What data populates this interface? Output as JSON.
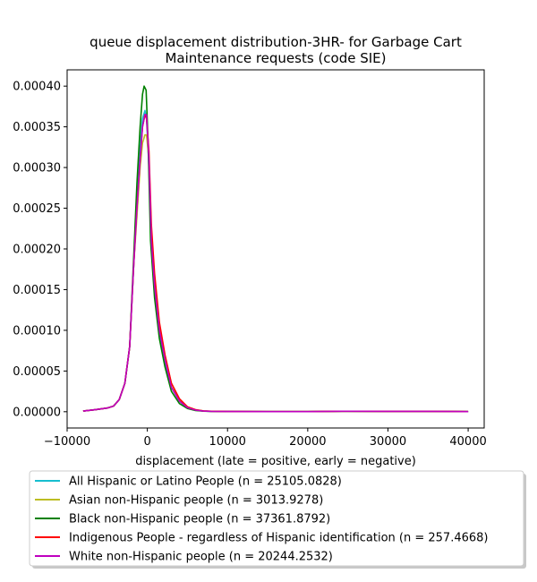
{
  "chart_data": {
    "type": "line",
    "title_lines": [
      "queue displacement distribution-3HR-  for Garbage Cart",
      "Maintenance  requests (code SIE)"
    ],
    "xlabel": "displacement (late = positive, early = negative)",
    "ylabel": "",
    "xlim": [
      -10000,
      42000
    ],
    "ylim": [
      -2e-05,
      0.00042
    ],
    "xticks": [
      -10000,
      0,
      10000,
      20000,
      30000,
      40000
    ],
    "xtick_labels": [
      "−10000",
      "0",
      "10000",
      "20000",
      "30000",
      "40000"
    ],
    "yticks": [
      0,
      5e-05,
      0.0001,
      0.00015,
      0.0002,
      0.00025,
      0.0003,
      0.00035,
      0.0004
    ],
    "ytick_labels": [
      "0.00000",
      "0.00005",
      "0.00010",
      "0.00015",
      "0.00020",
      "0.00025",
      "0.00030",
      "0.00035",
      "0.00040"
    ],
    "grid": false,
    "legend_placement": "below-chart",
    "series": [
      {
        "name": "All Hispanic or Latino People (n = 25105.0828)",
        "color": "#17becf",
        "points": [
          [
            -8000,
            8e-07
          ],
          [
            -6500,
            2.5e-06
          ],
          [
            -5000,
            4.5e-06
          ],
          [
            -4200,
            7e-06
          ],
          [
            -3500,
            1.5e-05
          ],
          [
            -2800,
            3.5e-05
          ],
          [
            -2200,
            8e-05
          ],
          [
            -1700,
            0.00018
          ],
          [
            -1300,
            0.00026
          ],
          [
            -900,
            0.00033
          ],
          [
            -600,
            0.00036
          ],
          [
            -300,
            0.00037
          ],
          [
            -100,
            0.00036
          ],
          [
            200,
            0.0003
          ],
          [
            500,
            0.0002
          ],
          [
            900,
            0.00015
          ],
          [
            1500,
            9.5e-05
          ],
          [
            2200,
            6e-05
          ],
          [
            3000,
            3e-05
          ],
          [
            4000,
            1.3e-05
          ],
          [
            5000,
            5e-06
          ],
          [
            6000,
            2e-06
          ],
          [
            7000,
            8e-07
          ],
          [
            8000,
            4e-07
          ],
          [
            10000,
            3e-07
          ],
          [
            15000,
            2e-07
          ],
          [
            20000,
            2e-07
          ],
          [
            25000,
            6e-07
          ],
          [
            30000,
            4e-07
          ],
          [
            35000,
            4e-07
          ],
          [
            40000,
            2e-07
          ]
        ]
      },
      {
        "name": "Asian non-Hispanic people (n = 3013.9278)",
        "color": "#bcbd22",
        "points": [
          [
            -8000,
            8e-07
          ],
          [
            -6500,
            2.5e-06
          ],
          [
            -5000,
            4.5e-06
          ],
          [
            -4200,
            7e-06
          ],
          [
            -3500,
            1.5e-05
          ],
          [
            -2800,
            3.5e-05
          ],
          [
            -2200,
            8e-05
          ],
          [
            -1700,
            0.00018
          ],
          [
            -1300,
            0.00024
          ],
          [
            -900,
            0.0003
          ],
          [
            -600,
            0.00033
          ],
          [
            -300,
            0.00034
          ],
          [
            -100,
            0.00034
          ],
          [
            200,
            0.00031
          ],
          [
            500,
            0.00022
          ],
          [
            900,
            0.000165
          ],
          [
            1500,
            0.000105
          ],
          [
            2200,
            6.8e-05
          ],
          [
            3000,
            3.5e-05
          ],
          [
            4000,
            1.5e-05
          ],
          [
            5000,
            6e-06
          ],
          [
            6000,
            2.5e-06
          ],
          [
            7000,
            1e-06
          ],
          [
            8000,
            5e-07
          ],
          [
            10000,
            3e-07
          ],
          [
            15000,
            2e-07
          ],
          [
            20000,
            2e-07
          ],
          [
            25000,
            6e-07
          ],
          [
            30000,
            4e-07
          ],
          [
            35000,
            4e-07
          ],
          [
            40000,
            2e-07
          ]
        ]
      },
      {
        "name": "Black non-Hispanic people (n = 37361.8792)",
        "color": "#008000",
        "points": [
          [
            -8000,
            8e-07
          ],
          [
            -6500,
            2.5e-06
          ],
          [
            -5000,
            4.5e-06
          ],
          [
            -4200,
            7e-06
          ],
          [
            -3500,
            1.5e-05
          ],
          [
            -2800,
            3.5e-05
          ],
          [
            -2200,
            8e-05
          ],
          [
            -1700,
            0.00019
          ],
          [
            -1300,
            0.00028
          ],
          [
            -900,
            0.00035
          ],
          [
            -600,
            0.00039
          ],
          [
            -400,
            0.0004
          ],
          [
            -150,
            0.000395
          ],
          [
            100,
            0.00033
          ],
          [
            400,
            0.00021
          ],
          [
            900,
            0.00014
          ],
          [
            1500,
            9e-05
          ],
          [
            2200,
            5.5e-05
          ],
          [
            3000,
            2.5e-05
          ],
          [
            4000,
            1e-05
          ],
          [
            5000,
            4e-06
          ],
          [
            6000,
            1.5e-06
          ],
          [
            7000,
            7e-07
          ],
          [
            8000,
            4e-07
          ],
          [
            10000,
            3e-07
          ],
          [
            15000,
            2e-07
          ],
          [
            20000,
            2e-07
          ],
          [
            25000,
            6e-07
          ],
          [
            30000,
            4e-07
          ],
          [
            35000,
            4e-07
          ],
          [
            40000,
            2e-07
          ]
        ]
      },
      {
        "name": "Indigenous People - regardless of Hispanic identification (n = 257.4668)",
        "color": "#ff0000",
        "points": [
          [
            -8000,
            8e-07
          ],
          [
            -6500,
            2.5e-06
          ],
          [
            -5000,
            4.5e-06
          ],
          [
            -4200,
            7e-06
          ],
          [
            -3500,
            1.5e-05
          ],
          [
            -2800,
            3.5e-05
          ],
          [
            -2200,
            8e-05
          ],
          [
            -1700,
            0.00018
          ],
          [
            -1300,
            0.00025
          ],
          [
            -900,
            0.00031
          ],
          [
            -600,
            0.00035
          ],
          [
            -300,
            0.000365
          ],
          [
            -100,
            0.00036
          ],
          [
            200,
            0.00032
          ],
          [
            500,
            0.00023
          ],
          [
            900,
            0.00017
          ],
          [
            1500,
            0.00011
          ],
          [
            2200,
            7e-05
          ],
          [
            3000,
            3.5e-05
          ],
          [
            4000,
            1.6e-05
          ],
          [
            5000,
            6e-06
          ],
          [
            6000,
            2.5e-06
          ],
          [
            7000,
            1e-06
          ],
          [
            8000,
            5e-07
          ],
          [
            10000,
            3e-07
          ],
          [
            15000,
            2e-07
          ],
          [
            20000,
            2e-07
          ],
          [
            25000,
            6e-07
          ],
          [
            30000,
            4e-07
          ],
          [
            35000,
            4e-07
          ],
          [
            40000,
            2e-07
          ]
        ]
      },
      {
        "name": "White non-Hispanic people (n = 20244.2532)",
        "color": "#bf00bf",
        "points": [
          [
            -8000,
            8e-07
          ],
          [
            -6500,
            2.5e-06
          ],
          [
            -5000,
            4.5e-06
          ],
          [
            -4200,
            7e-06
          ],
          [
            -3500,
            1.5e-05
          ],
          [
            -2800,
            3.5e-05
          ],
          [
            -2200,
            8e-05
          ],
          [
            -1700,
            0.00018
          ],
          [
            -1300,
            0.00025
          ],
          [
            -900,
            0.00031
          ],
          [
            -600,
            0.00035
          ],
          [
            -300,
            0.000365
          ],
          [
            -100,
            0.000365
          ],
          [
            200,
            0.00031
          ],
          [
            500,
            0.00021
          ],
          [
            900,
            0.000155
          ],
          [
            1500,
            0.0001
          ],
          [
            2200,
            6.4e-05
          ],
          [
            3000,
            3e-05
          ],
          [
            4000,
            1.3e-05
          ],
          [
            5000,
            5e-06
          ],
          [
            6000,
            2e-06
          ],
          [
            7000,
            8e-07
          ],
          [
            8000,
            4e-07
          ],
          [
            10000,
            3e-07
          ],
          [
            15000,
            2e-07
          ],
          [
            20000,
            2e-07
          ],
          [
            25000,
            6e-07
          ],
          [
            30000,
            4e-07
          ],
          [
            35000,
            4e-07
          ],
          [
            40000,
            2e-07
          ]
        ]
      }
    ]
  }
}
